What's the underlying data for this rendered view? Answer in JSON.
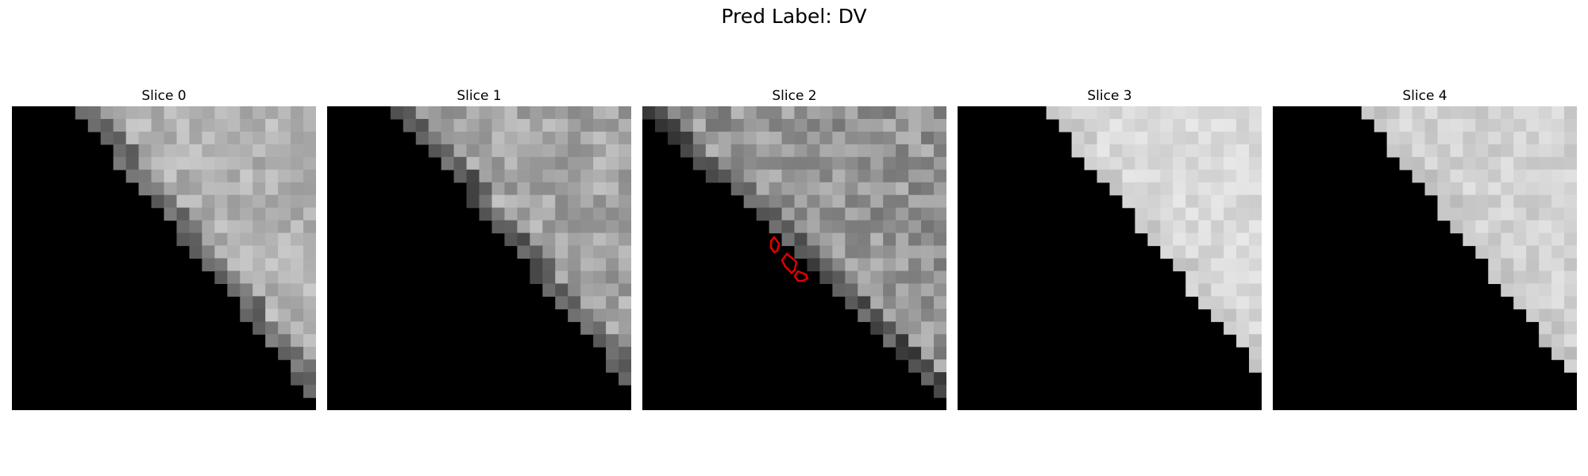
{
  "figure": {
    "title": "Pred Label: DV"
  },
  "colors": {
    "background": "#000000",
    "annotation": "#e00000"
  },
  "slices": [
    {
      "title": "Slice 0",
      "base": 178,
      "var": 24,
      "edge": 110
    },
    {
      "title": "Slice 1",
      "base": 165,
      "var": 30,
      "edge": 95
    },
    {
      "title": "Slice 2",
      "base": 150,
      "var": 34,
      "edge": 85
    },
    {
      "title": "Slice 3",
      "base": 218,
      "var": 14,
      "edge": 205
    },
    {
      "title": "Slice 4",
      "base": 210,
      "var": 16,
      "edge": 200
    }
  ]
}
